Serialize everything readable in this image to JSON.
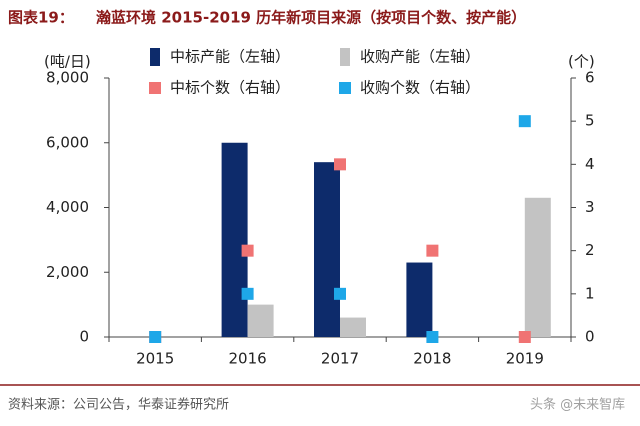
{
  "chart_data": {
    "type": "bar",
    "figure_label": "图表19：",
    "title": "瀚蓝环境 2015-2019 历年新项目来源（按项目个数、按产能）",
    "y_label": "(吨/日)",
    "y2_label": "(个)",
    "categories": [
      "2015",
      "2016",
      "2017",
      "2018",
      "2019"
    ],
    "series": [
      {
        "name": "中标产能（左轴）",
        "type": "bar",
        "color": "#0d2b6b",
        "values": [
          0,
          6000,
          5400,
          2300,
          0
        ]
      },
      {
        "name": "收购产能（左轴）",
        "type": "bar",
        "color": "#c3c3c3",
        "values": [
          0,
          1000,
          600,
          0,
          4300
        ]
      },
      {
        "name": "中标个数（右轴）",
        "type": "scatter",
        "axis": "y2",
        "color": "#f07373",
        "values": [
          0,
          2,
          4,
          2,
          0
        ]
      },
      {
        "name": "收购个数（右轴）",
        "type": "scatter",
        "axis": "y2",
        "color": "#1ea7e8",
        "values": [
          0,
          1,
          1,
          0,
          5
        ]
      }
    ],
    "ylim": [
      0,
      8000
    ],
    "yticks": [
      0,
      {
        "value": 2000,
        "label": "2,000"
      },
      {
        "value": 4000,
        "label": "4,000"
      },
      {
        "value": 6000,
        "label": "6,000"
      },
      {
        "value": 8000,
        "label": "8,000"
      }
    ],
    "y2lim": [
      0,
      6
    ],
    "y2ticks": [
      0,
      1,
      2,
      3,
      4,
      5,
      6
    ],
    "source": "资料来源：公司公告，华泰证券研究所",
    "watermark": "头条 @未来智库"
  }
}
